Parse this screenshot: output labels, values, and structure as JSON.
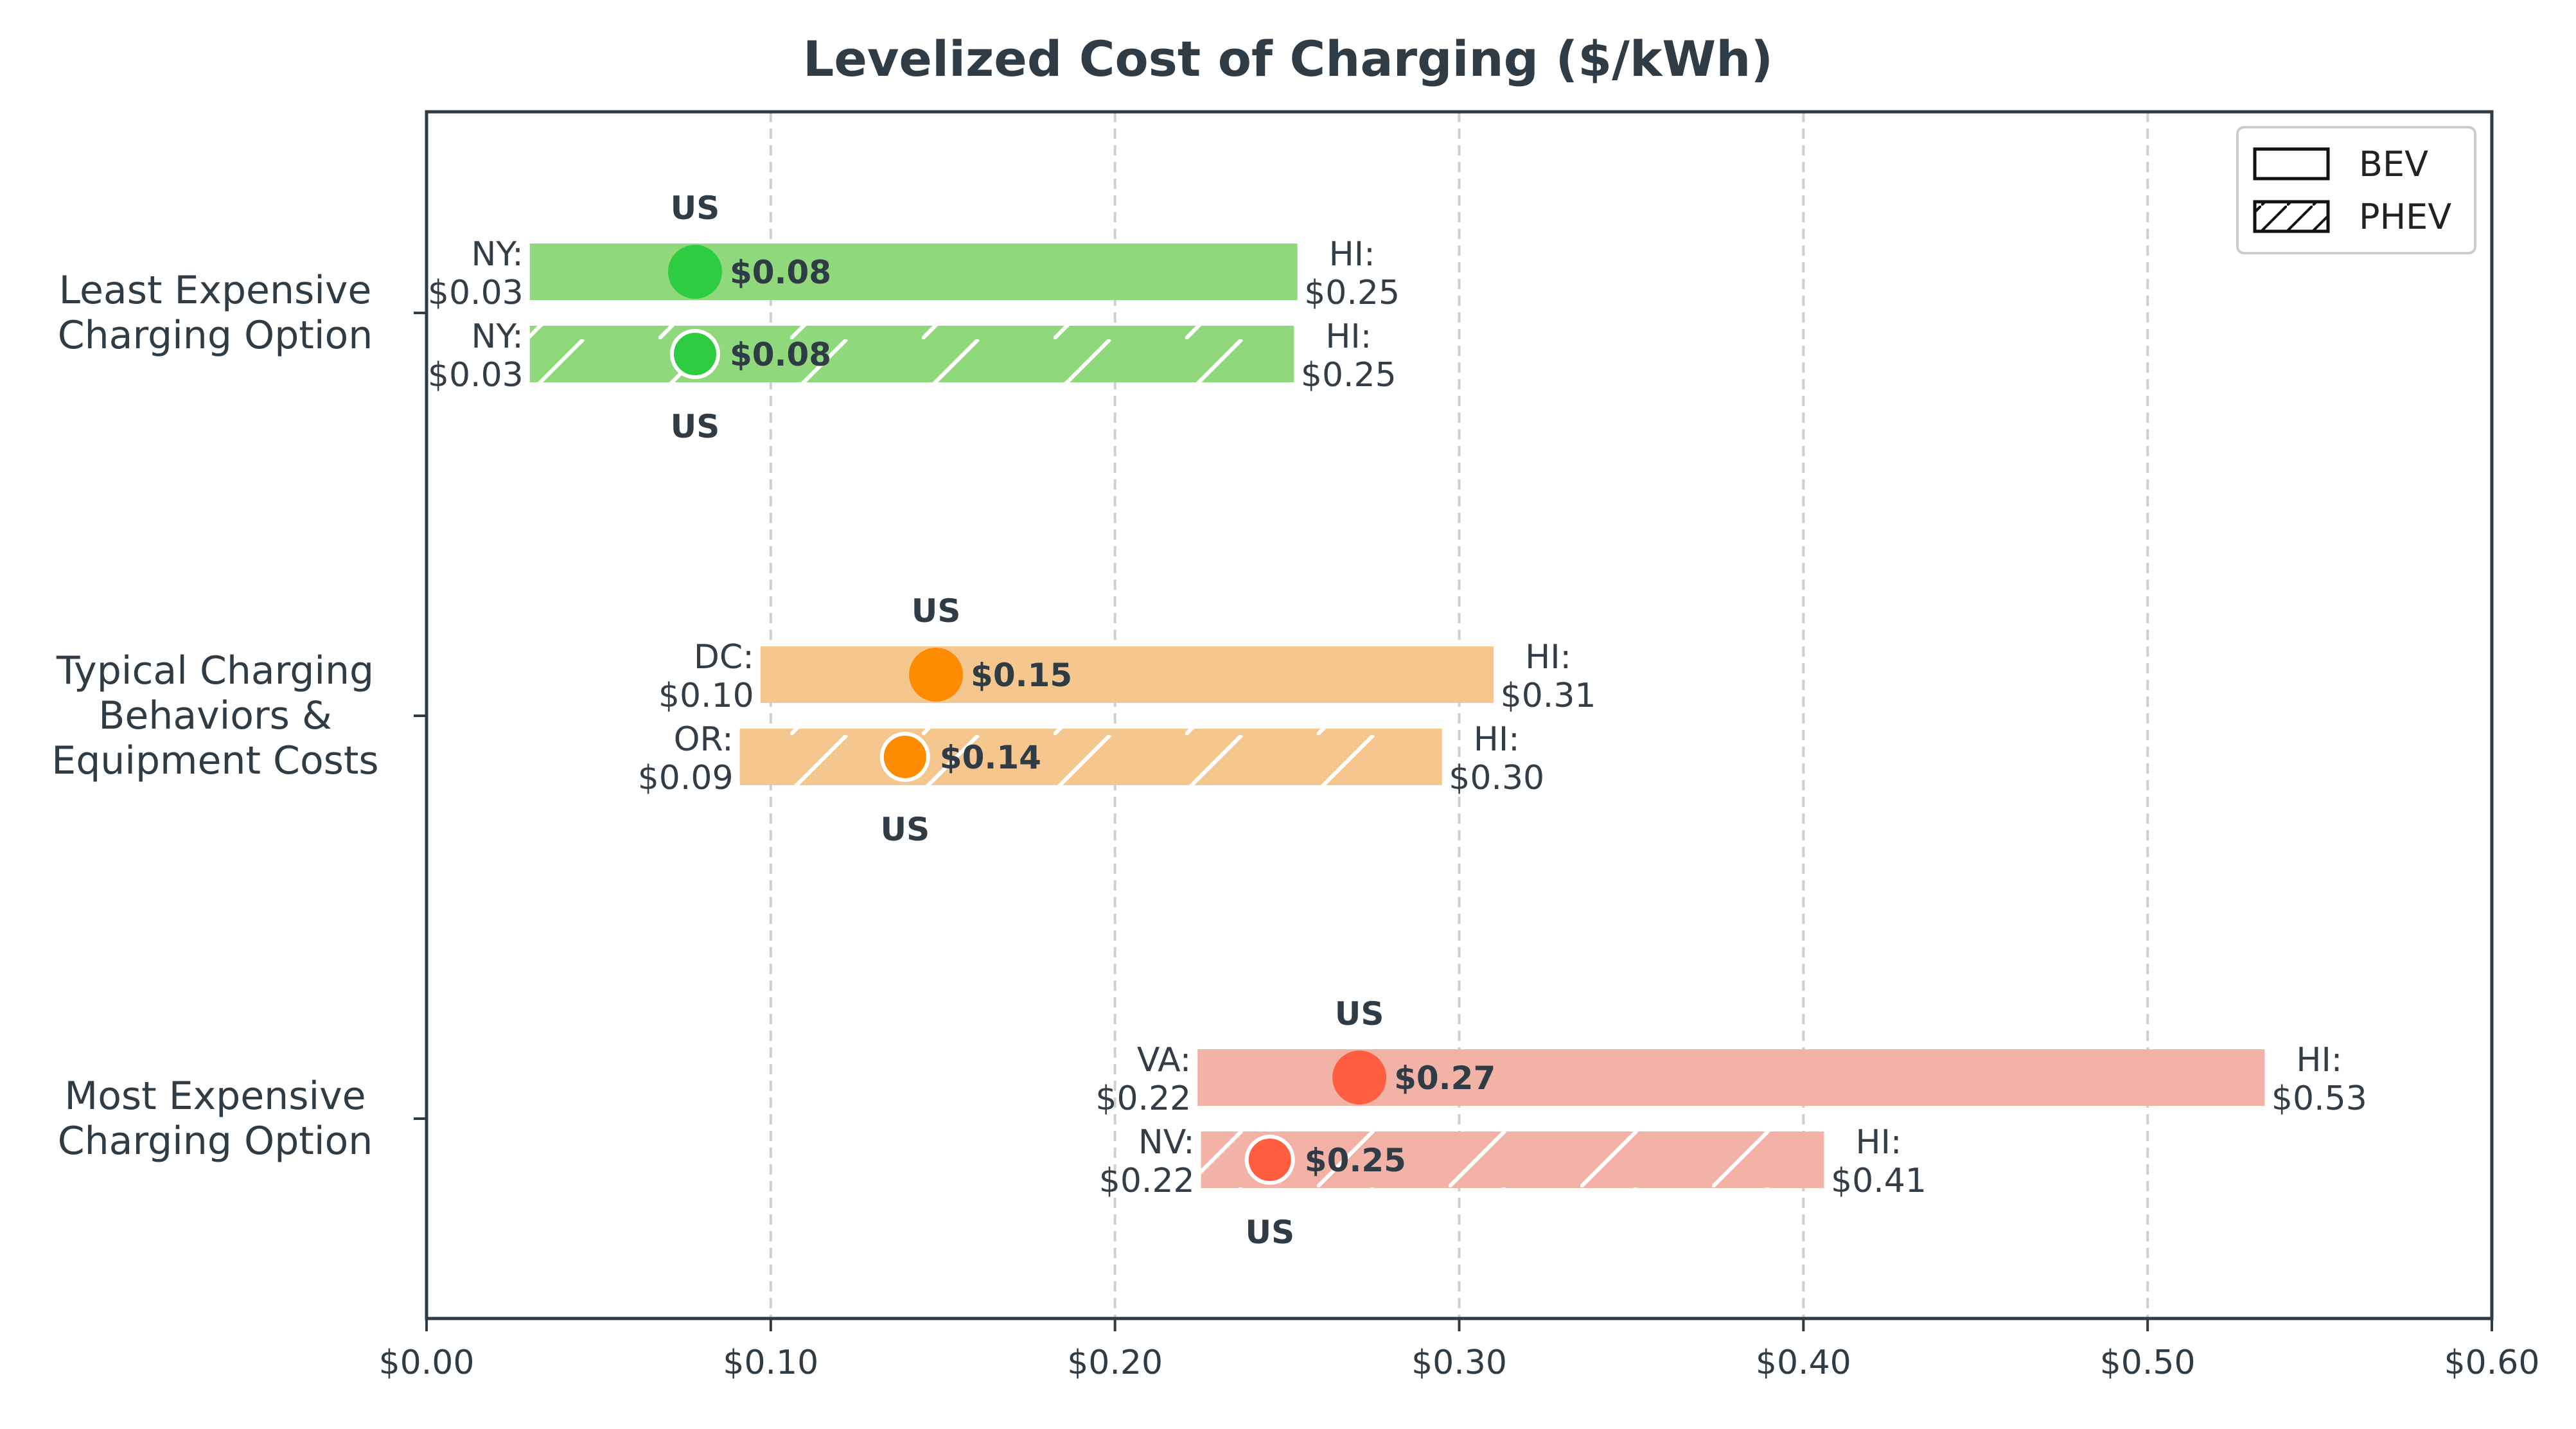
{
  "chart_data": {
    "type": "bar",
    "title": "Levelized Cost of Charging ($/kWh)",
    "xlabel": "",
    "ylabel": "",
    "xlim": [
      0,
      0.6
    ],
    "x_ticks": [
      "$0.00",
      "$0.10",
      "$0.20",
      "$0.30",
      "$0.40",
      "$0.50",
      "$0.60"
    ],
    "grid": "vertical dashed",
    "legend": {
      "placement": "top-right",
      "entries": [
        {
          "label": "BEV",
          "pattern": "solid"
        },
        {
          "label": "PHEV",
          "pattern": "hatched"
        }
      ]
    },
    "categories": [
      "Least Expensive Charging Option",
      "Typical Charging Behaviors & Equipment Costs",
      "Most Expensive Charging Option"
    ],
    "category_lines": [
      [
        "Least Expensive",
        "Charging Option"
      ],
      [
        "Typical Charging",
        "Behaviors &",
        "Equipment Costs"
      ],
      [
        "Most Expensive",
        "Charging Option"
      ]
    ],
    "groups": [
      {
        "category": "Least Expensive Charging Option",
        "bar_color": "#8fd97c",
        "dot_color": "#2ecc40",
        "bars": [
          {
            "type": "BEV",
            "min": 0.03,
            "max": 0.253,
            "us": 0.078,
            "min_state": "NY:",
            "min_label": "$0.03",
            "max_state": "HI:",
            "max_label": "$0.25",
            "us_label": "US",
            "us_value_label": "$0.08"
          },
          {
            "type": "PHEV",
            "min": 0.03,
            "max": 0.252,
            "us": 0.078,
            "min_state": "NY:",
            "min_label": "$0.03",
            "max_state": "HI:",
            "max_label": "$0.25",
            "us_label": "US",
            "us_value_label": "$0.08"
          }
        ]
      },
      {
        "category": "Typical Charging Behaviors & Equipment Costs",
        "bar_color": "#f5c78e",
        "dot_color": "#ff8c00",
        "bars": [
          {
            "type": "BEV",
            "min": 0.097,
            "max": 0.31,
            "us": 0.148,
            "min_state": "DC:",
            "min_label": "$0.10",
            "max_state": "HI:",
            "max_label": "$0.31",
            "us_label": "US",
            "us_value_label": "$0.15"
          },
          {
            "type": "PHEV",
            "min": 0.091,
            "max": 0.295,
            "us": 0.139,
            "min_state": "OR:",
            "min_label": "$0.09",
            "max_state": "HI:",
            "max_label": "$0.30",
            "us_label": "US",
            "us_value_label": "$0.14"
          }
        ]
      },
      {
        "category": "Most Expensive Charging Option",
        "bar_color": "#f3b2a6",
        "dot_color": "#ff5e40",
        "bars": [
          {
            "type": "BEV",
            "min": 0.224,
            "max": 0.534,
            "us": 0.271,
            "min_state": "VA:",
            "min_label": "$0.22",
            "max_state": "HI:",
            "max_label": "$0.53",
            "us_label": "US",
            "us_value_label": "$0.27"
          },
          {
            "type": "PHEV",
            "min": 0.225,
            "max": 0.406,
            "us": 0.245,
            "min_state": "NV:",
            "min_label": "$0.22",
            "max_state": "HI:",
            "max_label": "$0.41",
            "us_label": "US",
            "us_value_label": "$0.25"
          }
        ]
      }
    ]
  }
}
